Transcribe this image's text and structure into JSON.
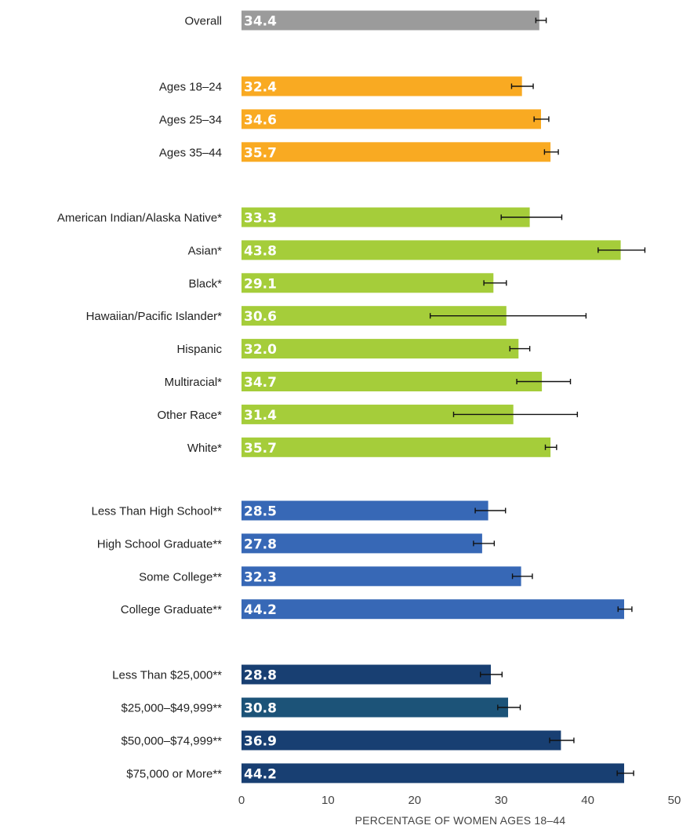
{
  "chart_data": {
    "type": "bar",
    "orientation": "horizontal",
    "title": "",
    "xlabel": "PERCENTAGE OF WOMEN AGES 18–44",
    "ylabel": "",
    "xlim": [
      0,
      50
    ],
    "xticks": [
      "0",
      "10",
      "20",
      "30",
      "40",
      "50"
    ],
    "grid": false,
    "legend": "none",
    "groups": [
      {
        "color": "#9b9b9b",
        "bars": [
          {
            "label": "Overall",
            "value": 34.4,
            "value_label": "34.4",
            "ci": [
              34.0,
              35.2
            ]
          }
        ]
      },
      {
        "color": "#f9aa22",
        "bars": [
          {
            "label": "Ages 18–24",
            "value": 32.4,
            "value_label": "32.4",
            "ci": [
              31.2,
              33.7
            ]
          },
          {
            "label": "Ages 25–34",
            "value": 34.6,
            "value_label": "34.6",
            "ci": [
              33.8,
              35.5
            ]
          },
          {
            "label": "Ages 35–44",
            "value": 35.7,
            "value_label": "35.7",
            "ci": [
              35.0,
              36.6
            ]
          }
        ]
      },
      {
        "color": "#a5cd3a",
        "bars": [
          {
            "label": "American Indian/Alaska Native*",
            "value": 33.3,
            "value_label": "33.3",
            "ci": [
              30.0,
              37.0
            ]
          },
          {
            "label": "Asian*",
            "value": 43.8,
            "value_label": "43.8",
            "ci": [
              41.2,
              46.6
            ]
          },
          {
            "label": "Black*",
            "value": 29.1,
            "value_label": "29.1",
            "ci": [
              28.0,
              30.6
            ]
          },
          {
            "label": "Hawaiian/Pacific Islander*",
            "value": 30.6,
            "value_label": "30.6",
            "ci": [
              21.8,
              39.8
            ]
          },
          {
            "label": "Hispanic",
            "value": 32.0,
            "value_label": "32.0",
            "ci": [
              31.0,
              33.3
            ]
          },
          {
            "label": "Multiracial*",
            "value": 34.7,
            "value_label": "34.7",
            "ci": [
              31.8,
              38.0
            ]
          },
          {
            "label": "Other Race*",
            "value": 31.4,
            "value_label": "31.4",
            "ci": [
              24.5,
              38.8
            ]
          },
          {
            "label": "White*",
            "value": 35.7,
            "value_label": "35.7",
            "ci": [
              35.1,
              36.4
            ]
          }
        ]
      },
      {
        "color": "#3768b6",
        "bars": [
          {
            "label": "Less Than High School**",
            "value": 28.5,
            "value_label": "28.5",
            "ci": [
              27.0,
              30.5
            ]
          },
          {
            "label": "High School Graduate**",
            "value": 27.8,
            "value_label": "27.8",
            "ci": [
              26.8,
              29.2
            ]
          },
          {
            "label": "Some College**",
            "value": 32.3,
            "value_label": "32.3",
            "ci": [
              31.3,
              33.6
            ]
          },
          {
            "label": "College Graduate**",
            "value": 44.2,
            "value_label": "44.2",
            "ci": [
              43.5,
              45.1
            ]
          }
        ]
      },
      {
        "color": "#183f72",
        "bars": [
          {
            "label": "Less Than $25,000**",
            "value": 28.8,
            "value_label": "28.8",
            "ci": [
              27.6,
              30.1
            ]
          }
        ]
      },
      {
        "color": "#1c5378",
        "bars": [
          {
            "label": "$25,000–$49,999**",
            "value": 30.8,
            "value_label": "30.8",
            "ci": [
              29.6,
              32.2
            ]
          }
        ]
      },
      {
        "color": "#183f72",
        "bars": [
          {
            "label": "$50,000–$74,999**",
            "value": 36.9,
            "value_label": "36.9",
            "ci": [
              35.6,
              38.4
            ]
          },
          {
            "label": "$75,000 or More**",
            "value": 44.2,
            "value_label": "44.2",
            "ci": [
              43.4,
              45.3
            ]
          }
        ]
      }
    ]
  }
}
